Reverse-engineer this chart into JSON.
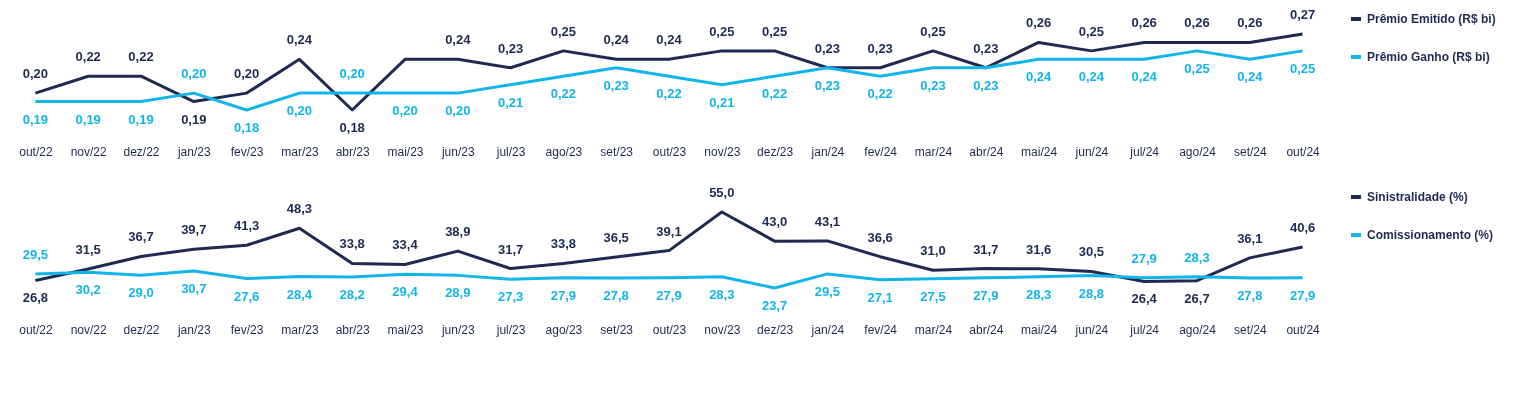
{
  "chart_data": [
    {
      "type": "line",
      "categories": [
        "out/22",
        "nov/22",
        "dez/22",
        "jan/23",
        "fev/23",
        "mar/23",
        "abr/23",
        "mai/23",
        "jun/23",
        "jul/23",
        "ago/23",
        "set/23",
        "out/23",
        "nov/23",
        "dez/23",
        "jan/24",
        "fev/24",
        "mar/24",
        "abr/24",
        "mai/24",
        "jun/24",
        "jul/24",
        "ago/24",
        "set/24",
        "out/24"
      ],
      "legend": "right",
      "series": [
        {
          "name": "Prêmio Emitido (R$ bi)",
          "color": "#1f2a52",
          "values": [
            0.2,
            0.22,
            0.22,
            0.19,
            0.2,
            0.24,
            0.18,
            0.24,
            0.24,
            0.23,
            0.25,
            0.24,
            0.24,
            0.25,
            0.25,
            0.23,
            0.23,
            0.25,
            0.23,
            0.26,
            0.25,
            0.26,
            0.26,
            0.26,
            0.27
          ],
          "value_labels": [
            "0,20",
            "0,22",
            "0,22",
            "0,19",
            "0,20",
            "0,24",
            "0,18",
            null,
            "0,24",
            "0,23",
            "0,25",
            "0,24",
            "0,24",
            "0,25",
            "0,25",
            "0,23",
            "0,23",
            "0,25",
            "0,23",
            "0,26",
            "0,25",
            "0,26",
            "0,26",
            "0,26",
            "0,27"
          ]
        },
        {
          "name": "Prêmio Ganho (R$ bi)",
          "color": "#12b5ea",
          "values": [
            0.19,
            0.19,
            0.19,
            0.2,
            0.18,
            0.2,
            0.2,
            0.2,
            0.2,
            0.21,
            0.22,
            0.23,
            0.22,
            0.21,
            0.22,
            0.23,
            0.22,
            0.23,
            0.23,
            0.24,
            0.24,
            0.24,
            0.25,
            0.24,
            0.25
          ],
          "value_labels": [
            "0,19",
            "0,19",
            "0,19",
            "0,20",
            "0,18",
            "0,20",
            "0,20",
            "0,20",
            "0,20",
            "0,21",
            "0,22",
            "0,23",
            "0,22",
            "0,21",
            "0,22",
            "0,23",
            "0,22",
            "0,23",
            "0,23",
            "0,24",
            "0,24",
            "0,24",
            "0,25",
            "0,24",
            "0,25"
          ]
        }
      ]
    },
    {
      "type": "line",
      "categories": [
        "out/22",
        "nov/22",
        "dez/22",
        "jan/23",
        "fev/23",
        "mar/23",
        "abr/23",
        "mai/23",
        "jun/23",
        "jul/23",
        "ago/23",
        "set/23",
        "out/23",
        "nov/23",
        "dez/23",
        "jan/24",
        "fev/24",
        "mar/24",
        "abr/24",
        "mai/24",
        "jun/24",
        "jul/24",
        "ago/24",
        "set/24",
        "out/24"
      ],
      "legend": "right",
      "series": [
        {
          "name": "Sinistralidade (%)",
          "color": "#1f2a52",
          "values": [
            26.8,
            31.5,
            36.7,
            39.7,
            41.3,
            48.3,
            33.8,
            33.4,
            38.9,
            31.7,
            33.8,
            36.5,
            39.1,
            55.0,
            43.0,
            43.1,
            36.6,
            31.0,
            31.7,
            31.6,
            30.5,
            26.4,
            26.7,
            36.1,
            40.6
          ],
          "value_labels": [
            "26,8",
            "31,5",
            "36,7",
            "39,7",
            "41,3",
            "48,3",
            "33,8",
            "33,4",
            "38,9",
            "31,7",
            "33,8",
            "36,5",
            "39,1",
            "55,0",
            "43,0",
            "43,1",
            "36,6",
            "31,0",
            "31,7",
            "31,6",
            "30,5",
            "26,4",
            "26,7",
            "36,1",
            "40,6"
          ]
        },
        {
          "name": "Comissionamento (%)",
          "color": "#12b5ea",
          "values": [
            29.5,
            30.2,
            29.0,
            30.7,
            27.6,
            28.4,
            28.2,
            29.4,
            28.9,
            27.3,
            27.9,
            27.8,
            27.9,
            28.3,
            23.7,
            29.5,
            27.1,
            27.5,
            27.9,
            28.3,
            28.8,
            27.9,
            28.3,
            27.8,
            27.9
          ],
          "value_labels": [
            "29,5",
            "30,2",
            "29,0",
            "30,7",
            "27,6",
            "28,4",
            "28,2",
            "29,4",
            "28,9",
            "27,3",
            "27,9",
            "27,8",
            "27,9",
            "28,3",
            "23,7",
            "29,5",
            "27,1",
            "27,5",
            "27,9",
            "28,3",
            "28,8",
            "27,9",
            "28,3",
            "27,8",
            "27,9"
          ]
        }
      ]
    }
  ]
}
